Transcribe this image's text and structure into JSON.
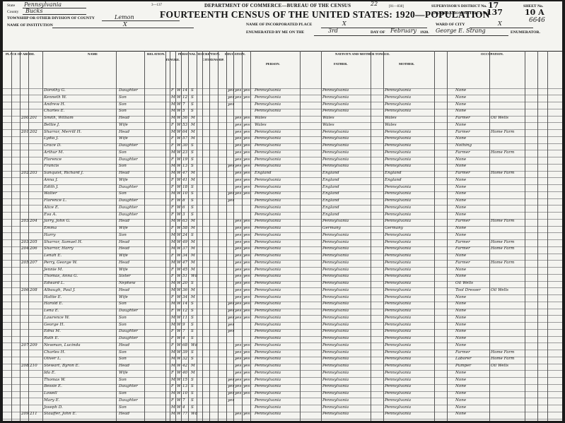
{
  "header": {
    "form_code": "3—137",
    "form_number": "[01—838]",
    "department": "DEPARTMENT OF COMMERCE—BUREAU OF THE CENSUS",
    "title": "FOURTEENTH CENSUS OF THE UNITED STATES: 1920—POPULATION",
    "page_stamp": "22",
    "state_label": "State",
    "state_value": "Pennsylvania",
    "county_label": "County",
    "county_value": "Bucks",
    "township_label": "TOWNSHIP OR OTHER DIVISION OF COUNTY",
    "township_value": "Lemon",
    "institution_label": "NAME OF INSTITUTION",
    "institution_value": "X",
    "incorporated_label": "NAME OF INCORPORATED PLACE",
    "incorporated_value": "X",
    "ward_label": "WARD OF CITY",
    "ward_value": "X",
    "enumerated_label": "ENUMERATED BY ME ON THE",
    "enumerated_day": "3rd",
    "day_of": "DAY OF",
    "month": "February",
    "year": "1920.",
    "enumerator": "George E. Strang",
    "enumerator_label": "ENUMERATOR.",
    "supervisor_label": "SUPERVISOR'S DISTRICT No.",
    "supervisor_value": "17",
    "enumeration_label": "ENUMERATION DISTRICT No.",
    "enumeration_value": "137",
    "sheet_label": "SHEET No.",
    "sheet_value": "10 A",
    "corner_number": "6646"
  },
  "column_groups": [
    {
      "label": "PLACE OF ABODE."
    },
    {
      "label": "NAME"
    },
    {
      "label": "RELATION."
    },
    {
      "label": "TENURE."
    },
    {
      "label": "PERSONAL DESCRIPTION."
    },
    {
      "label": "CITIZENSHIP."
    },
    {
      "label": "EDUCATION."
    },
    {
      "label": "NATIVITY AND MOTHER TONGUE."
    },
    {
      "label": "OCCUPATION."
    }
  ],
  "nativity_subheads": [
    "PERSON.",
    "FATHER.",
    "MOTHER."
  ],
  "rows": [
    {
      "dwell": "",
      "fam": "",
      "name": "Dorothy G.",
      "rel": "Daughter",
      "sex": "F",
      "race": "W",
      "age": "14",
      "ms": "S",
      "school": "yes",
      "read": "yes",
      "write": "yes",
      "birth": "Pennsylvania",
      "father": "Pennsylvania",
      "mother": "Pennsylvania",
      "trade": "None",
      "ind": ""
    },
    {
      "dwell": "",
      "fam": "",
      "name": "Kenneth W.",
      "rel": "Son",
      "sex": "M",
      "race": "W",
      "age": "12",
      "ms": "S",
      "school": "yes",
      "read": "yes",
      "write": "yes",
      "birth": "Pennsylvania",
      "father": "Pennsylvania",
      "mother": "Pennsylvania",
      "trade": "None",
      "ind": ""
    },
    {
      "dwell": "",
      "fam": "",
      "name": "Andrew H.",
      "rel": "Son",
      "sex": "M",
      "race": "W",
      "age": "7",
      "ms": "S",
      "school": "yes",
      "read": "",
      "write": "",
      "birth": "Pennsylvania",
      "father": "Pennsylvania",
      "mother": "Pennsylvania",
      "trade": "None",
      "ind": ""
    },
    {
      "dwell": "",
      "fam": "",
      "name": "Charles E.",
      "rel": "Son",
      "sex": "M",
      "race": "W",
      "age": "5",
      "ms": "S",
      "school": "",
      "read": "",
      "write": "",
      "birth": "Pennsylvania",
      "father": "Pennsylvania",
      "mother": "Pennsylvania",
      "trade": "None",
      "ind": ""
    },
    {
      "dwell": "200",
      "fam": "201",
      "name": "Smith, William",
      "rel": "Head",
      "sex": "M",
      "race": "W",
      "age": "56",
      "ms": "M",
      "school": "",
      "read": "yes",
      "write": "yes",
      "birth": "Wales",
      "father": "Wales",
      "mother": "Wales",
      "trade": "Farmer",
      "ind": "Oil Wells"
    },
    {
      "dwell": "",
      "fam": "",
      "name": "Bettie J.",
      "rel": "Wife",
      "sex": "F",
      "race": "W",
      "age": "53",
      "ms": "M",
      "school": "",
      "read": "yes",
      "write": "yes",
      "birth": "Wales",
      "father": "Wales",
      "mother": "Wales",
      "trade": "None",
      "ind": ""
    },
    {
      "dwell": "201",
      "fam": "202",
      "name": "Sharrar, Merrill H.",
      "rel": "Head",
      "sex": "M",
      "race": "W",
      "age": "64",
      "ms": "M",
      "school": "",
      "read": "yes",
      "write": "yes",
      "birth": "Pennsylvania",
      "father": "Pennsylvania",
      "mother": "Pennsylvania",
      "trade": "Farmer",
      "ind": "Home Farm"
    },
    {
      "dwell": "",
      "fam": "",
      "name": "Lydia J.",
      "rel": "Wife",
      "sex": "F",
      "race": "W",
      "age": "57",
      "ms": "M",
      "school": "",
      "read": "yes",
      "write": "yes",
      "birth": "Pennsylvania",
      "father": "Pennsylvania",
      "mother": "Pennsylvania",
      "trade": "None",
      "ind": ""
    },
    {
      "dwell": "",
      "fam": "",
      "name": "Grace D.",
      "rel": "Daughter",
      "sex": "F",
      "race": "W",
      "age": "30",
      "ms": "S",
      "school": "",
      "read": "yes",
      "write": "yes",
      "birth": "Pennsylvania",
      "father": "Pennsylvania",
      "mother": "Pennsylvania",
      "trade": "Nothing",
      "ind": ""
    },
    {
      "dwell": "",
      "fam": "",
      "name": "Arthur M.",
      "rel": "Son",
      "sex": "M",
      "race": "W",
      "age": "23",
      "ms": "S",
      "school": "",
      "read": "yes",
      "write": "yes",
      "birth": "Pennsylvania",
      "father": "Pennsylvania",
      "mother": "Pennsylvania",
      "trade": "Farmer",
      "ind": "Home Farm"
    },
    {
      "dwell": "",
      "fam": "",
      "name": "Florence",
      "rel": "Daughter",
      "sex": "F",
      "race": "W",
      "age": "19",
      "ms": "S",
      "school": "",
      "read": "yes",
      "write": "yes",
      "birth": "Pennsylvania",
      "father": "Pennsylvania",
      "mother": "Pennsylvania",
      "trade": "None",
      "ind": ""
    },
    {
      "dwell": "",
      "fam": "",
      "name": "Francis",
      "rel": "Son",
      "sex": "M",
      "race": "W",
      "age": "13",
      "ms": "S",
      "school": "yes",
      "read": "yes",
      "write": "yes",
      "birth": "Pennsylvania",
      "father": "Pennsylvania",
      "mother": "Pennsylvania",
      "trade": "None",
      "ind": ""
    },
    {
      "dwell": "202",
      "fam": "203",
      "name": "Sanquist, Richard J.",
      "rel": "Head",
      "sex": "M",
      "race": "W",
      "age": "47",
      "ms": "M",
      "school": "",
      "read": "yes",
      "write": "yes",
      "birth": "England",
      "father": "England",
      "mother": "England",
      "trade": "Farmer",
      "ind": "Home Farm"
    },
    {
      "dwell": "",
      "fam": "",
      "name": "Anna J.",
      "rel": "Wife",
      "sex": "F",
      "race": "W",
      "age": "41",
      "ms": "M",
      "school": "",
      "read": "yes",
      "write": "yes",
      "birth": "Pennsylvania",
      "father": "England",
      "mother": "England",
      "trade": "None",
      "ind": ""
    },
    {
      "dwell": "",
      "fam": "",
      "name": "Edith J.",
      "rel": "Daughter",
      "sex": "F",
      "race": "W",
      "age": "18",
      "ms": "S",
      "school": "",
      "read": "yes",
      "write": "yes",
      "birth": "Pennsylvania",
      "father": "England",
      "mother": "Pennsylvania",
      "trade": "None",
      "ind": ""
    },
    {
      "dwell": "",
      "fam": "",
      "name": "Walter",
      "rel": "Son",
      "sex": "M",
      "race": "W",
      "age": "10",
      "ms": "S",
      "school": "yes",
      "read": "yes",
      "write": "yes",
      "birth": "Pennsylvania",
      "father": "England",
      "mother": "Pennsylvania",
      "trade": "None",
      "ind": ""
    },
    {
      "dwell": "",
      "fam": "",
      "name": "Florence L.",
      "rel": "Daughter",
      "sex": "F",
      "race": "W",
      "age": "8",
      "ms": "S",
      "school": "yes",
      "read": "",
      "write": "",
      "birth": "Pennsylvania",
      "father": "England",
      "mother": "Pennsylvania",
      "trade": "None",
      "ind": ""
    },
    {
      "dwell": "",
      "fam": "",
      "name": "Alice E.",
      "rel": "Daughter",
      "sex": "F",
      "race": "W",
      "age": "6",
      "ms": "S",
      "school": "",
      "read": "",
      "write": "",
      "birth": "Pennsylvania",
      "father": "England",
      "mother": "Pennsylvania",
      "trade": "None",
      "ind": ""
    },
    {
      "dwell": "",
      "fam": "",
      "name": "Eva A.",
      "rel": "Daughter",
      "sex": "F",
      "race": "W",
      "age": "3",
      "ms": "S",
      "school": "",
      "read": "",
      "write": "",
      "birth": "Pennsylvania",
      "father": "England",
      "mother": "Pennsylvania",
      "trade": "None",
      "ind": ""
    },
    {
      "dwell": "203",
      "fam": "204",
      "name": "Jarry, John G.",
      "rel": "Head",
      "sex": "M",
      "race": "W",
      "age": "63",
      "ms": "M",
      "school": "",
      "read": "yes",
      "write": "yes",
      "birth": "Pennsylvania",
      "father": "Pennsylvania",
      "mother": "Pennsylvania",
      "trade": "Farmer",
      "ind": "Home Farm"
    },
    {
      "dwell": "",
      "fam": "",
      "name": "Emma",
      "rel": "Wife",
      "sex": "F",
      "race": "W",
      "age": "58",
      "ms": "M",
      "school": "",
      "read": "yes",
      "write": "yes",
      "birth": "Pennsylvania",
      "father": "Germany",
      "mother": "Germany",
      "trade": "None",
      "ind": ""
    },
    {
      "dwell": "",
      "fam": "",
      "name": "Harry",
      "rel": "Son",
      "sex": "M",
      "race": "W",
      "age": "24",
      "ms": "S",
      "school": "",
      "read": "yes",
      "write": "yes",
      "birth": "Pennsylvania",
      "father": "Pennsylvania",
      "mother": "Pennsylvania",
      "trade": "None",
      "ind": ""
    },
    {
      "dwell": "203",
      "fam": "205",
      "name": "Sharrar, Samuel H.",
      "rel": "Head",
      "sex": "M",
      "race": "W",
      "age": "49",
      "ms": "M",
      "school": "",
      "read": "yes",
      "write": "yes",
      "birth": "Pennsylvania",
      "father": "Pennsylvania",
      "mother": "Pennsylvania",
      "trade": "Farmer",
      "ind": "Home Farm"
    },
    {
      "dwell": "204",
      "fam": "206",
      "name": "Sharrar, Harry",
      "rel": "Head",
      "sex": "M",
      "race": "W",
      "age": "37",
      "ms": "M",
      "school": "",
      "read": "yes",
      "write": "yes",
      "birth": "Pennsylvania",
      "father": "Pennsylvania",
      "mother": "Pennsylvania",
      "trade": "Farmer",
      "ind": "Home Farm"
    },
    {
      "dwell": "",
      "fam": "",
      "name": "Lenah E.",
      "rel": "Wife",
      "sex": "F",
      "race": "W",
      "age": "34",
      "ms": "M",
      "school": "",
      "read": "yes",
      "write": "yes",
      "birth": "Pennsylvania",
      "father": "Pennsylvania",
      "mother": "Pennsylvania",
      "trade": "None",
      "ind": ""
    },
    {
      "dwell": "205",
      "fam": "207",
      "name": "Perry, George W.",
      "rel": "Head",
      "sex": "M",
      "race": "W",
      "age": "47",
      "ms": "M",
      "school": "",
      "read": "yes",
      "write": "yes",
      "birth": "Pennsylvania",
      "father": "Pennsylvania",
      "mother": "Pennsylvania",
      "trade": "Farmer",
      "ind": "Home Farm"
    },
    {
      "dwell": "",
      "fam": "",
      "name": "Jennie M.",
      "rel": "Wife",
      "sex": "F",
      "race": "W",
      "age": "45",
      "ms": "M",
      "school": "",
      "read": "yes",
      "write": "yes",
      "birth": "Pennsylvania",
      "father": "Pennsylvania",
      "mother": "Pennsylvania",
      "trade": "None",
      "ind": ""
    },
    {
      "dwell": "",
      "fam": "",
      "name": "Thomas, Anna G.",
      "rel": "Sister",
      "sex": "F",
      "race": "W",
      "age": "51",
      "ms": "Wd",
      "school": "",
      "read": "yes",
      "write": "yes",
      "birth": "Pennsylvania",
      "father": "Pennsylvania",
      "mother": "Pennsylvania",
      "trade": "None",
      "ind": ""
    },
    {
      "dwell": "",
      "fam": "",
      "name": "Edward L.",
      "rel": "Nephew",
      "sex": "M",
      "race": "W",
      "age": "20",
      "ms": "S",
      "school": "",
      "read": "yes",
      "write": "yes",
      "birth": "Pennsylvania",
      "father": "Pennsylvania",
      "mother": "Pennsylvania",
      "trade": "Oil Wells",
      "ind": ""
    },
    {
      "dwell": "206",
      "fam": "208",
      "name": "Albaugh, Paul J.",
      "rel": "Head",
      "sex": "M",
      "race": "W",
      "age": "36",
      "ms": "M",
      "school": "",
      "read": "yes",
      "write": "yes",
      "birth": "Pennsylvania",
      "father": "Pennsylvania",
      "mother": "Pennsylvania",
      "trade": "Tool Dresser",
      "ind": "Oil Wells"
    },
    {
      "dwell": "",
      "fam": "",
      "name": "Hattie E.",
      "rel": "Wife",
      "sex": "F",
      "race": "W",
      "age": "34",
      "ms": "M",
      "school": "",
      "read": "yes",
      "write": "yes",
      "birth": "Pennsylvania",
      "father": "Pennsylvania",
      "mother": "Pennsylvania",
      "trade": "None",
      "ind": ""
    },
    {
      "dwell": "",
      "fam": "",
      "name": "Harold E.",
      "rel": "Son",
      "sex": "M",
      "race": "W",
      "age": "14",
      "ms": "S",
      "school": "yes",
      "read": "yes",
      "write": "yes",
      "birth": "Pennsylvania",
      "father": "Pennsylvania",
      "mother": "Pennsylvania",
      "trade": "None",
      "ind": ""
    },
    {
      "dwell": "",
      "fam": "",
      "name": "Lena E.",
      "rel": "Daughter",
      "sex": "F",
      "race": "W",
      "age": "12",
      "ms": "S",
      "school": "yes",
      "read": "yes",
      "write": "yes",
      "birth": "Pennsylvania",
      "father": "Pennsylvania",
      "mother": "Pennsylvania",
      "trade": "None",
      "ind": ""
    },
    {
      "dwell": "",
      "fam": "",
      "name": "Lawrence W.",
      "rel": "Son",
      "sex": "M",
      "race": "W",
      "age": "11",
      "ms": "S",
      "school": "yes",
      "read": "yes",
      "write": "yes",
      "birth": "Pennsylvania",
      "father": "Pennsylvania",
      "mother": "Pennsylvania",
      "trade": "None",
      "ind": ""
    },
    {
      "dwell": "",
      "fam": "",
      "name": "George H.",
      "rel": "Son",
      "sex": "M",
      "race": "W",
      "age": "9",
      "ms": "S",
      "school": "yes",
      "read": "",
      "write": "",
      "birth": "Pennsylvania",
      "father": "Pennsylvania",
      "mother": "Pennsylvania",
      "trade": "None",
      "ind": ""
    },
    {
      "dwell": "",
      "fam": "",
      "name": "Edna M.",
      "rel": "Daughter",
      "sex": "F",
      "race": "W",
      "age": "7",
      "ms": "S",
      "school": "yes",
      "read": "",
      "write": "",
      "birth": "Pennsylvania",
      "father": "Pennsylvania",
      "mother": "Pennsylvania",
      "trade": "None",
      "ind": ""
    },
    {
      "dwell": "",
      "fam": "",
      "name": "Ruth E.",
      "rel": "Daughter",
      "sex": "F",
      "race": "W",
      "age": "4",
      "ms": "S",
      "school": "",
      "read": "",
      "write": "",
      "birth": "Pennsylvania",
      "father": "Pennsylvania",
      "mother": "Pennsylvania",
      "trade": "None",
      "ind": ""
    },
    {
      "dwell": "207",
      "fam": "209",
      "name": "Newman, Lucinda",
      "rel": "Head",
      "sex": "F",
      "race": "W",
      "age": "68",
      "ms": "Wd",
      "school": "",
      "read": "yes",
      "write": "yes",
      "birth": "Pennsylvania",
      "father": "Pennsylvania",
      "mother": "Pennsylvania",
      "trade": "None",
      "ind": ""
    },
    {
      "dwell": "",
      "fam": "",
      "name": "Charles H.",
      "rel": "Son",
      "sex": "M",
      "race": "W",
      "age": "39",
      "ms": "S",
      "school": "",
      "read": "yes",
      "write": "yes",
      "birth": "Pennsylvania",
      "father": "Pennsylvania",
      "mother": "Pennsylvania",
      "trade": "Farmer",
      "ind": "Home Farm"
    },
    {
      "dwell": "",
      "fam": "",
      "name": "Oliver L.",
      "rel": "Son",
      "sex": "M",
      "race": "W",
      "age": "32",
      "ms": "S",
      "school": "",
      "read": "yes",
      "write": "yes",
      "birth": "Pennsylvania",
      "father": "Pennsylvania",
      "mother": "Pennsylvania",
      "trade": "Laborer",
      "ind": "Home Farm"
    },
    {
      "dwell": "208",
      "fam": "210",
      "name": "Stewart, Byron E.",
      "rel": "Head",
      "sex": "M",
      "race": "W",
      "age": "42",
      "ms": "M",
      "school": "",
      "read": "yes",
      "write": "yes",
      "birth": "Pennsylvania",
      "father": "Pennsylvania",
      "mother": "Pennsylvania",
      "trade": "Pumper",
      "ind": "Oil Wells"
    },
    {
      "dwell": "",
      "fam": "",
      "name": "Ida E.",
      "rel": "Wife",
      "sex": "F",
      "race": "W",
      "age": "40",
      "ms": "M",
      "school": "",
      "read": "yes",
      "write": "yes",
      "birth": "Pennsylvania",
      "father": "Pennsylvania",
      "mother": "Pennsylvania",
      "trade": "None",
      "ind": ""
    },
    {
      "dwell": "",
      "fam": "",
      "name": "Thomas W.",
      "rel": "Son",
      "sex": "M",
      "race": "W",
      "age": "15",
      "ms": "S",
      "school": "yes",
      "read": "yes",
      "write": "yes",
      "birth": "Pennsylvania",
      "father": "Pennsylvania",
      "mother": "Pennsylvania",
      "trade": "None",
      "ind": ""
    },
    {
      "dwell": "",
      "fam": "",
      "name": "Bessie E.",
      "rel": "Daughter",
      "sex": "F",
      "race": "W",
      "age": "13",
      "ms": "S",
      "school": "yes",
      "read": "yes",
      "write": "yes",
      "birth": "Pennsylvania",
      "father": "Pennsylvania",
      "mother": "Pennsylvania",
      "trade": "None",
      "ind": ""
    },
    {
      "dwell": "",
      "fam": "",
      "name": "Lowell",
      "rel": "Son",
      "sex": "M",
      "race": "W",
      "age": "10",
      "ms": "S",
      "school": "yes",
      "read": "yes",
      "write": "yes",
      "birth": "Pennsylvania",
      "father": "Pennsylvania",
      "mother": "Pennsylvania",
      "trade": "None",
      "ind": ""
    },
    {
      "dwell": "",
      "fam": "",
      "name": "Mary E.",
      "rel": "Daughter",
      "sex": "F",
      "race": "W",
      "age": "7",
      "ms": "S",
      "school": "yes",
      "read": "",
      "write": "",
      "birth": "Pennsylvania",
      "father": "Pennsylvania",
      "mother": "Pennsylvania",
      "trade": "None",
      "ind": ""
    },
    {
      "dwell": "",
      "fam": "",
      "name": "Joseph D.",
      "rel": "Son",
      "sex": "M",
      "race": "W",
      "age": "4",
      "ms": "S",
      "school": "",
      "read": "",
      "write": "",
      "birth": "Pennsylvania",
      "father": "Pennsylvania",
      "mother": "Pennsylvania",
      "trade": "None",
      "ind": ""
    },
    {
      "dwell": "209",
      "fam": "211",
      "name": "Stauffer, John E.",
      "rel": "Head",
      "sex": "M",
      "race": "W",
      "age": "77",
      "ms": "Wd",
      "school": "",
      "read": "yes",
      "write": "yes",
      "birth": "Pennsylvania",
      "father": "Pennsylvania",
      "mother": "Pennsylvania",
      "trade": "None",
      "ind": ""
    }
  ]
}
